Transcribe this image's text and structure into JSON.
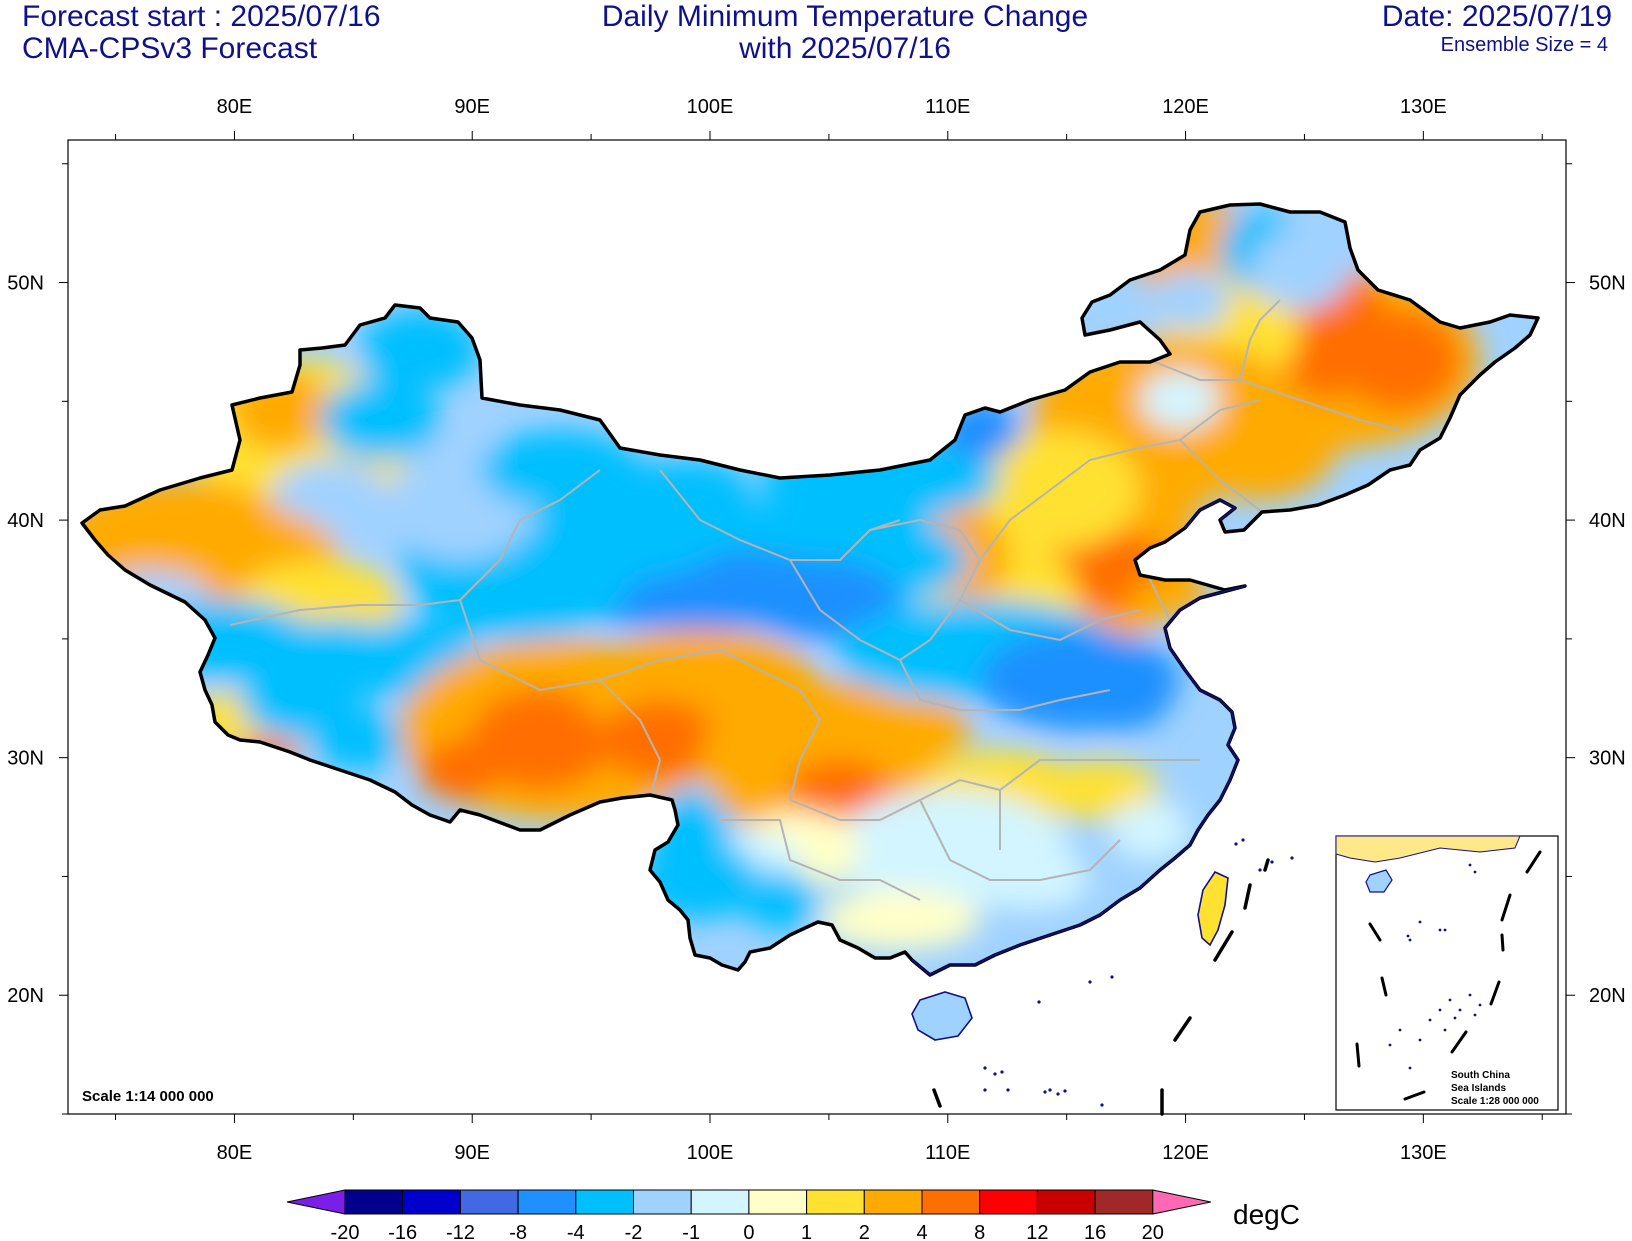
{
  "header": {
    "forecast_start": "Forecast start : 2025/07/16",
    "model": "CMA-CPSv3 Forecast",
    "title_line1": "Daily Minimum Temperature Change",
    "title_line2": "with 2025/07/16",
    "date": "Date: 2025/07/19",
    "ensemble": "Ensemble Size = 4"
  },
  "map": {
    "lon_range": [
      73.0,
      136.0
    ],
    "lat_range": [
      15.0,
      56.0
    ],
    "lon_ticks": [
      "80E",
      "90E",
      "100E",
      "110E",
      "120E",
      "130E"
    ],
    "lat_ticks": [
      "50N",
      "40N",
      "30N",
      "20N"
    ],
    "scale_label": "Scale 1:14 000 000",
    "inset": {
      "line1": "South China",
      "line2": "Sea Islands",
      "line3": "Scale 1:28 000 000"
    }
  },
  "colorbar": {
    "unit": "degC",
    "labels": [
      "-20",
      "-16",
      "-12",
      "-8",
      "-4",
      "-2",
      "-1",
      "0",
      "1",
      "2",
      "4",
      "8",
      "12",
      "16",
      "20"
    ],
    "colors": [
      "#7b1ee8",
      "#00008b",
      "#0000cd",
      "#4169e1",
      "#1e90ff",
      "#00bfff",
      "#a0d2ff",
      "#d2f5ff",
      "#ffffc8",
      "#ffe132",
      "#ffaa00",
      "#ff6e00",
      "#ff0000",
      "#c80000",
      "#a02828",
      "#ff69b4"
    ]
  }
}
